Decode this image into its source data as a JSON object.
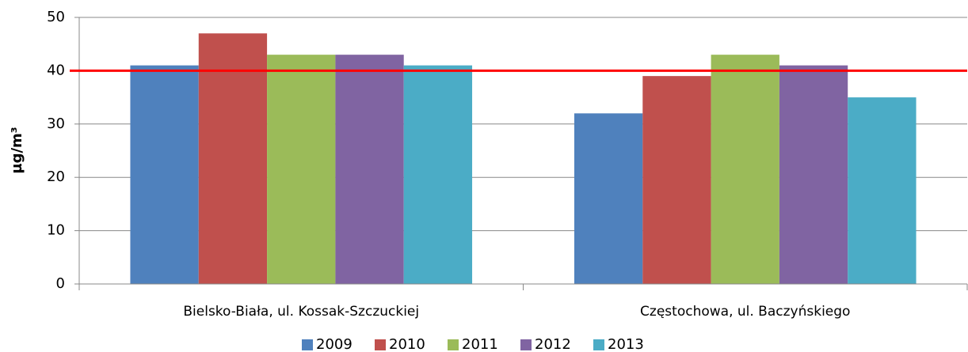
{
  "chart_data": {
    "type": "bar",
    "y_label": "µg/m³",
    "categories": [
      "Bielsko-Biała, ul. Kossak-Szczuckiej",
      "Częstochowa, ul. Baczyńskiego"
    ],
    "series": [
      {
        "name": "2009",
        "color": "#4f81bd",
        "values": [
          41,
          32
        ]
      },
      {
        "name": "2010",
        "color": "#c0504d",
        "values": [
          47,
          39
        ]
      },
      {
        "name": "2011",
        "color": "#9bbb59",
        "values": [
          43,
          43
        ]
      },
      {
        "name": "2012",
        "color": "#8064a2",
        "values": [
          43,
          41
        ]
      },
      {
        "name": "2013",
        "color": "#4bacc6",
        "values": [
          41,
          35
        ]
      }
    ],
    "reference_line": {
      "value": 40,
      "color": "#ff0000"
    },
    "ylim": [
      0,
      50
    ],
    "yticks": [
      0,
      10,
      20,
      30,
      40,
      50
    ],
    "grid": true,
    "legend": "bottom"
  }
}
